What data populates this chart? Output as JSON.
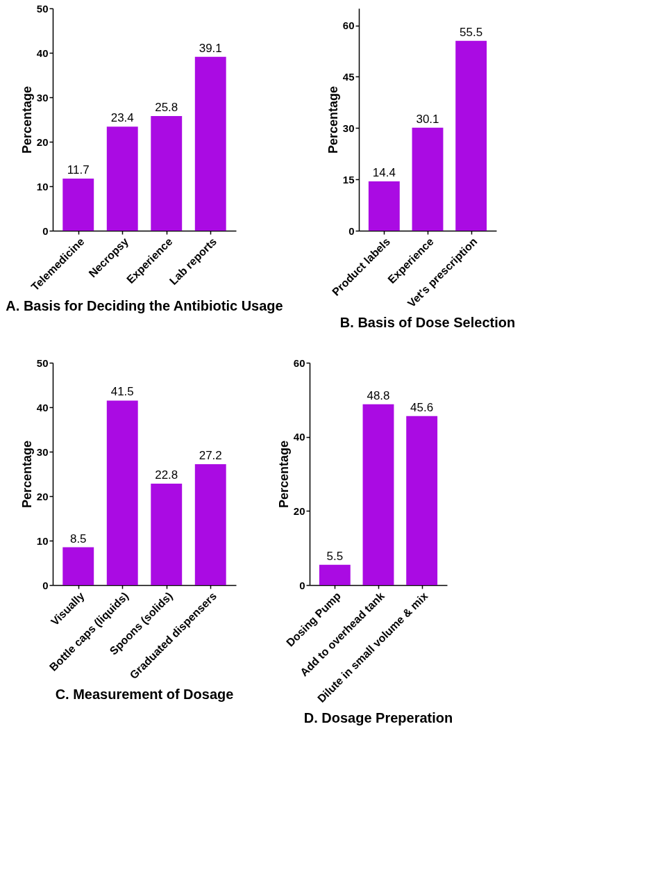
{
  "chart_data": [
    {
      "type": "bar",
      "title": "A. Basis for Deciding  the Antibiotic Usage",
      "ylabel": "Percentage",
      "categories": [
        "Telemedicine",
        "Necropsy",
        "Experience",
        "Lab reports"
      ],
      "values": [
        11.7,
        23.4,
        25.8,
        39.1
      ],
      "color": "#aa0be3",
      "ylim": [
        0,
        50
      ],
      "yticks": [
        0,
        10,
        20,
        30,
        40,
        50
      ],
      "data_labels": true,
      "grid": false
    },
    {
      "type": "bar",
      "title": "B. Basis of Dose Selection",
      "ylabel": "Percentage",
      "categories": [
        "Product labels",
        "Experience",
        "Vet's prescription"
      ],
      "values": [
        14.4,
        30.1,
        55.5
      ],
      "color": "#aa0be3",
      "ylim": [
        0,
        65
      ],
      "yticks": [
        0,
        15,
        30,
        45,
        60
      ],
      "data_labels": true,
      "grid": false
    },
    {
      "type": "bar",
      "title": "C. Measurement of Dosage",
      "ylabel": "Percentage",
      "categories": [
        "Visually",
        "Bottle caps (liquids)",
        "Spoons (solids)",
        "Graduated dispensers"
      ],
      "values": [
        8.5,
        41.5,
        22.8,
        27.2
      ],
      "color": "#aa0be3",
      "ylim": [
        0,
        50
      ],
      "yticks": [
        0,
        10,
        20,
        30,
        40,
        50
      ],
      "data_labels": true,
      "grid": false
    },
    {
      "type": "bar",
      "title": "D. Dosage Preperation",
      "ylabel": "Percentage",
      "categories": [
        "Dosing Pump",
        "Add to overhead tank",
        "Dilute in small volume & mix"
      ],
      "values": [
        5.5,
        48.8,
        45.6
      ],
      "color": "#aa0be3",
      "ylim": [
        0,
        60
      ],
      "yticks": [
        0,
        20,
        40,
        60
      ],
      "data_labels": true,
      "grid": false
    }
  ]
}
